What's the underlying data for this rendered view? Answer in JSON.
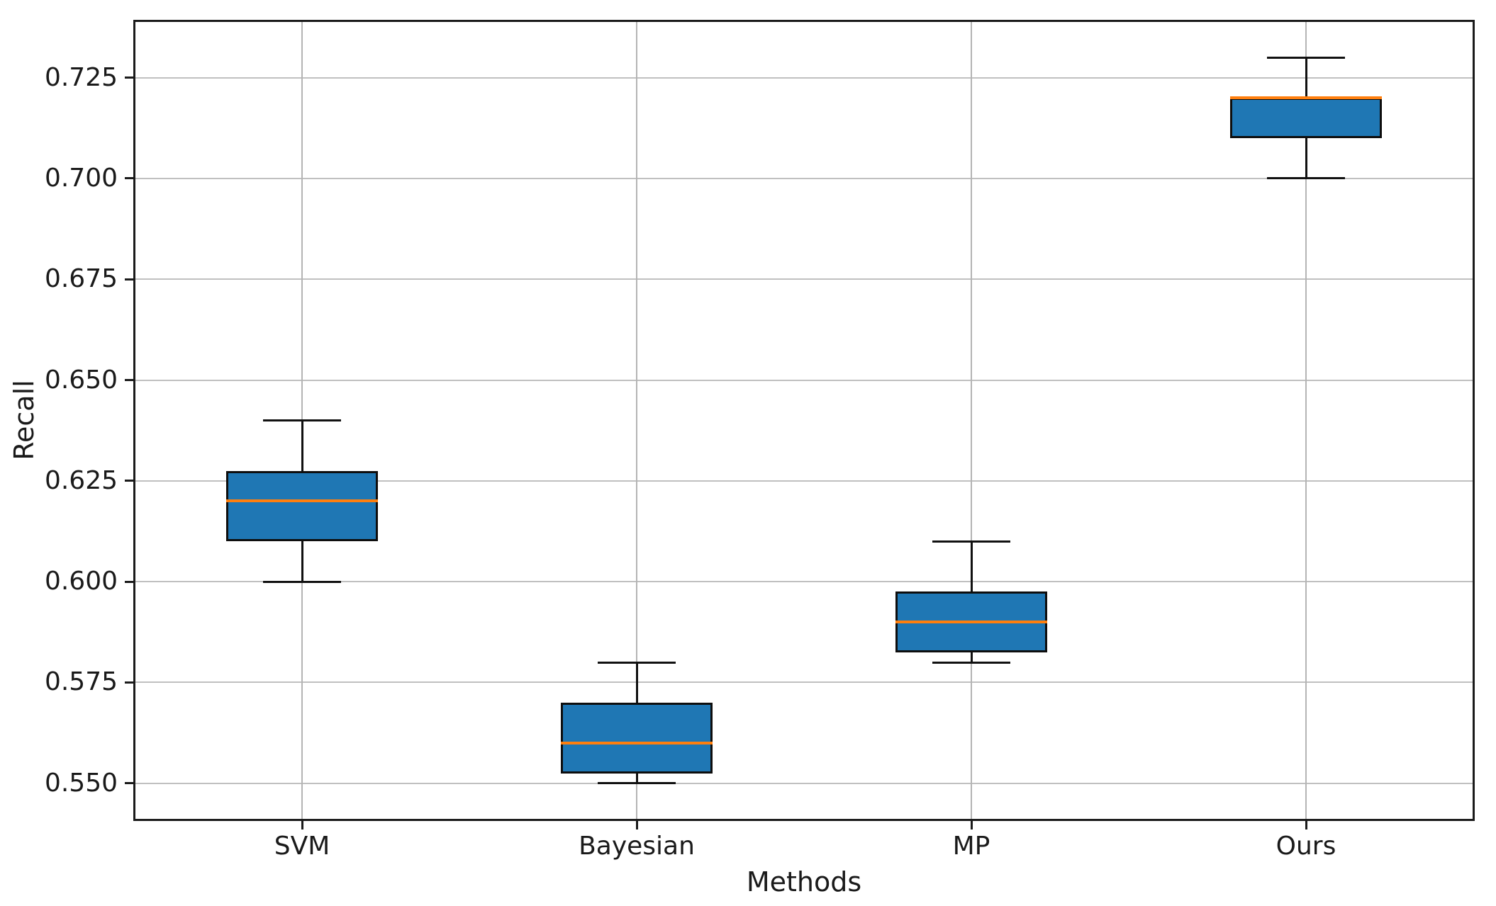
{
  "chart_data": {
    "type": "boxplot",
    "title": "",
    "xlabel": "Methods",
    "ylabel": "Recall",
    "categories": [
      "SVM",
      "Bayesian",
      "MP",
      "Ours"
    ],
    "series": [
      {
        "name": "SVM",
        "whisker_low": 0.6,
        "q1": 0.61,
        "median": 0.62,
        "q3": 0.6275,
        "whisker_high": 0.64
      },
      {
        "name": "Bayesian",
        "whisker_low": 0.55,
        "q1": 0.5525,
        "median": 0.56,
        "q3": 0.57,
        "whisker_high": 0.58
      },
      {
        "name": "MP",
        "whisker_low": 0.58,
        "q1": 0.5825,
        "median": 0.59,
        "q3": 0.5975,
        "whisker_high": 0.61
      },
      {
        "name": "Ours",
        "whisker_low": 0.7,
        "q1": 0.71,
        "median": 0.72,
        "q3": 0.72,
        "whisker_high": 0.73
      }
    ],
    "yticks": [
      0.55,
      0.575,
      0.6,
      0.625,
      0.65,
      0.675,
      0.7,
      0.725
    ],
    "ytick_labels": [
      "0.550",
      "0.575",
      "0.600",
      "0.625",
      "0.650",
      "0.675",
      "0.700",
      "0.725"
    ],
    "ylim": [
      0.541,
      0.739
    ],
    "grid": true,
    "legend_position": "none",
    "colors": {
      "box_fill": "#1f77b4",
      "median": "#ff7f0e",
      "box_edge": "#0e0e0e",
      "whisker": "#111111",
      "grid": "#c0c0c0",
      "spine": "#1b1b1b",
      "text": "#1a1a1a"
    }
  }
}
